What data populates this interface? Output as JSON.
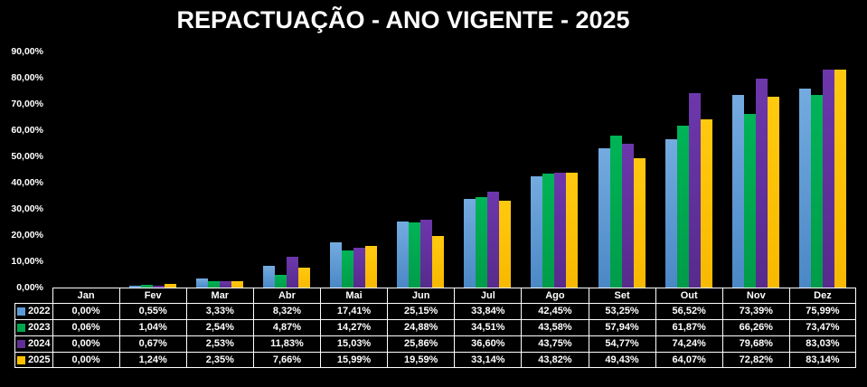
{
  "title": "REPACTUAÇÃO - ANO VIGENTE - 2025",
  "chart_data": {
    "type": "bar",
    "title": "REPACTUAÇÃO - ANO VIGENTE - 2025",
    "categories": [
      "Jan",
      "Fev",
      "Mar",
      "Abr",
      "Mai",
      "Jun",
      "Jul",
      "Ago",
      "Set",
      "Out",
      "Nov",
      "Dez"
    ],
    "series": [
      {
        "name": "2022",
        "color": "#5B9BD5",
        "color_top": "#74ABE0",
        "color_bottom": "#4A88C6",
        "values": [
          0.0,
          0.55,
          3.33,
          8.32,
          17.41,
          25.15,
          33.84,
          42.45,
          53.25,
          56.52,
          73.39,
          75.99
        ]
      },
      {
        "name": "2023",
        "color": "#00A64F",
        "color_top": "#00B457",
        "color_bottom": "#009C49",
        "values": [
          0.06,
          1.04,
          2.54,
          4.87,
          14.27,
          24.88,
          34.51,
          43.58,
          57.94,
          61.87,
          66.26,
          73.47
        ]
      },
      {
        "name": "2024",
        "color": "#5F2F96",
        "color_top": "#6D37AC",
        "color_bottom": "#572B8C",
        "values": [
          0.0,
          0.67,
          2.53,
          11.83,
          15.03,
          25.86,
          36.6,
          43.75,
          54.77,
          74.24,
          79.68,
          83.03
        ]
      },
      {
        "name": "2025",
        "color": "#FFC000",
        "color_top": "#FFC90F",
        "color_bottom": "#F8B900",
        "values": [
          0.0,
          1.24,
          2.35,
          7.66,
          15.99,
          19.59,
          33.14,
          43.82,
          49.43,
          64.07,
          72.82,
          83.14
        ]
      }
    ],
    "ylim": [
      0,
      90
    ],
    "y_tick_labels": [
      "0,00%",
      "10,00%",
      "20,00%",
      "30,00%",
      "40,00%",
      "50,00%",
      "60,00%",
      "70,00%",
      "80,00%",
      "90,00%"
    ],
    "grid": false,
    "legend_position": "data-table-left",
    "background": "#000000",
    "text_color": "#FFFFFF",
    "number_format": "pt-BR percent, 2 decimals"
  }
}
